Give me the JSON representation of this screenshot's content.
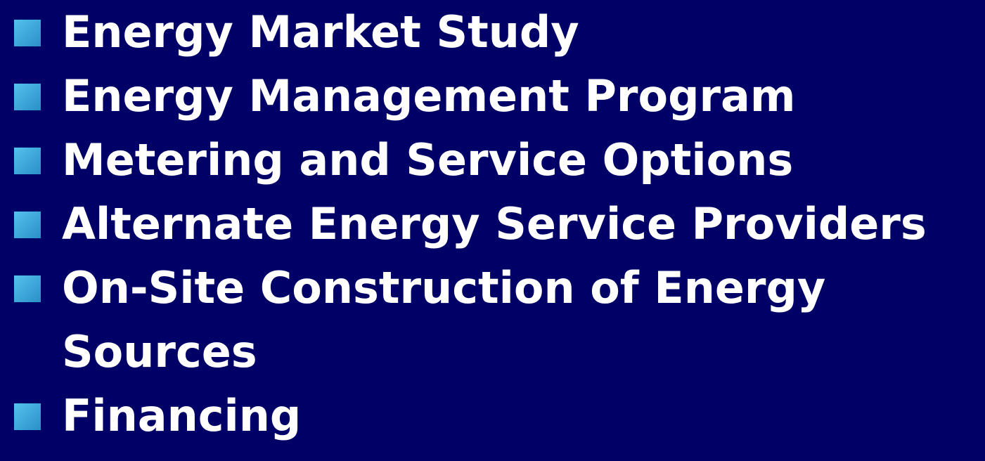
{
  "bullets": [
    "Energy Market Study",
    "Energy Management Program",
    "Metering and Service Options",
    "Alternate Energy Service Providers",
    "On-Site Construction of Energy Sources",
    "Financing"
  ]
}
